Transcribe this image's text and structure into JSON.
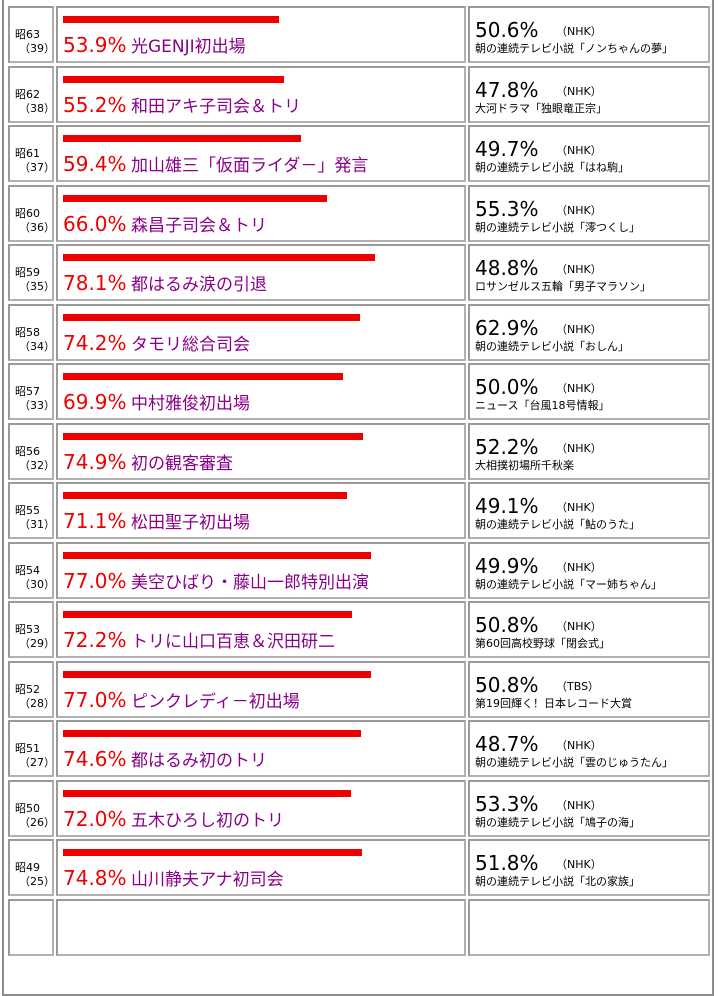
{
  "colors": {
    "bar": "#ee0000",
    "percent": "#ee0000",
    "event": "#8a008a"
  },
  "chart_data": {
    "type": "bar",
    "orientation": "horizontal",
    "rows": [
      {
        "era": "昭63",
        "year": "（39）",
        "value": 53.9,
        "value_label": "53.9%",
        "event": "光GENJI初出場",
        "rival_value": "50.6%",
        "rival_network": "（NHK）",
        "rival_program": "朝の連続テレビ小説「ノンちゃんの夢」"
      },
      {
        "era": "昭62",
        "year": "（38）",
        "value": 55.2,
        "value_label": "55.2%",
        "event": "和田アキ子司会＆トリ",
        "rival_value": "47.8%",
        "rival_network": "（NHK）",
        "rival_program": "大河ドラマ「独眼竜正宗」"
      },
      {
        "era": "昭61",
        "year": "（37）",
        "value": 59.4,
        "value_label": "59.4%",
        "event": "加山雄三「仮面ライダ－」発言",
        "rival_value": "49.7%",
        "rival_network": "（NHK）",
        "rival_program": "朝の連続テレビ小説「はね駒」"
      },
      {
        "era": "昭60",
        "year": "（36）",
        "value": 66.0,
        "value_label": "66.0%",
        "event": "森昌子司会＆トリ",
        "rival_value": "55.3%",
        "rival_network": "（NHK）",
        "rival_program": "朝の連続テレビ小説「澪つくし」"
      },
      {
        "era": "昭59",
        "year": "（35）",
        "value": 78.1,
        "value_label": "78.1%",
        "event": "都はるみ涙の引退",
        "rival_value": "48.8%",
        "rival_network": "（NHK）",
        "rival_program": "ロサンゼルス五輪「男子マラソン」"
      },
      {
        "era": "昭58",
        "year": "（34）",
        "value": 74.2,
        "value_label": "74.2%",
        "event": "タモリ総合司会",
        "rival_value": "62.9%",
        "rival_network": "（NHK）",
        "rival_program": "朝の連続テレビ小説「おしん」"
      },
      {
        "era": "昭57",
        "year": "（33）",
        "value": 69.9,
        "value_label": "69.9%",
        "event": "中村雅俊初出場",
        "rival_value": "50.0%",
        "rival_network": "（NHK）",
        "rival_program": "ニュース「台風18号情報」"
      },
      {
        "era": "昭56",
        "year": "（32）",
        "value": 74.9,
        "value_label": "74.9%",
        "event": "初の観客審査",
        "rival_value": "52.2%",
        "rival_network": "（NHK）",
        "rival_program": "大相撲初場所千秋楽"
      },
      {
        "era": "昭55",
        "year": "（31）",
        "value": 71.1,
        "value_label": "71.1%",
        "event": "松田聖子初出場",
        "rival_value": "49.1%",
        "rival_network": "（NHK）",
        "rival_program": "朝の連続テレビ小説「鮎のうた」"
      },
      {
        "era": "昭54",
        "year": "（30）",
        "value": 77.0,
        "value_label": "77.0%",
        "event": "美空ひばり・藤山一郎特別出演",
        "rival_value": "49.9%",
        "rival_network": "（NHK）",
        "rival_program": "朝の連続テレビ小説「マー姉ちゃん」"
      },
      {
        "era": "昭53",
        "year": "（29）",
        "value": 72.2,
        "value_label": "72.2%",
        "event": "トリに山口百恵＆沢田研二",
        "rival_value": "50.8%",
        "rival_network": "（NHK）",
        "rival_program": "第60回高校野球「閉会式」"
      },
      {
        "era": "昭52",
        "year": "（28）",
        "value": 77.0,
        "value_label": "77.0%",
        "event": "ピンクレディ－初出場",
        "rival_value": "50.8%",
        "rival_network": "（TBS）",
        "rival_program": "第19回輝く！日本レコード大賞"
      },
      {
        "era": "昭51",
        "year": "（27）",
        "value": 74.6,
        "value_label": "74.6%",
        "event": "都はるみ初のトリ",
        "rival_value": "48.7%",
        "rival_network": "（NHK）",
        "rival_program": "朝の連続テレビ小説「雲のじゅうたん」"
      },
      {
        "era": "昭50",
        "year": "（26）",
        "value": 72.0,
        "value_label": "72.0%",
        "event": "五木ひろし初のトリ",
        "rival_value": "53.3%",
        "rival_network": "（NHK）",
        "rival_program": "朝の連続テレビ小説「鳩子の海」"
      },
      {
        "era": "昭49",
        "year": "（25）",
        "value": 74.8,
        "value_label": "74.8%",
        "event": "山川静夫アナ初司会",
        "rival_value": "51.8%",
        "rival_network": "（NHK）",
        "rival_program": "朝の連続テレビ小説「北の家族」"
      }
    ]
  }
}
